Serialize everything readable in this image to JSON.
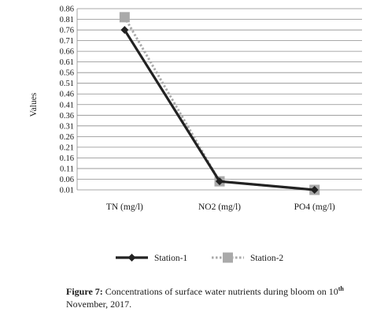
{
  "chart_data": {
    "type": "line",
    "categories": [
      "TN (mg/l)",
      "NO2 (mg/l)",
      "PO4 (mg/l)"
    ],
    "series": [
      {
        "name": "Station-1",
        "values": [
          0.76,
          0.05,
          0.01
        ],
        "color": "#222222",
        "marker": "diamond",
        "line": "solid"
      },
      {
        "name": "Station-2",
        "values": [
          0.82,
          0.05,
          0.01
        ],
        "color": "#aaaaaa",
        "marker": "square",
        "line": "dotted"
      }
    ],
    "ylabel": "Values",
    "xlabel": "",
    "ylim": [
      0.01,
      0.86
    ],
    "yticks": [
      "0.86",
      "0.81",
      "0.76",
      "0.71",
      "0.66",
      "0.61",
      "0.56",
      "0.51",
      "0.46",
      "0.41",
      "0.36",
      "0.31",
      "0.26",
      "0.21",
      "0.16",
      "0.11",
      "0.06",
      "0.01"
    ],
    "grid": true,
    "legend": "bottom"
  },
  "caption": {
    "label": "Figure 7:",
    "text_before_sup": " Concentrations of  surface water nutrients during bloom on 10",
    "sup": "th",
    "text_after_sup": " November, 2017."
  }
}
